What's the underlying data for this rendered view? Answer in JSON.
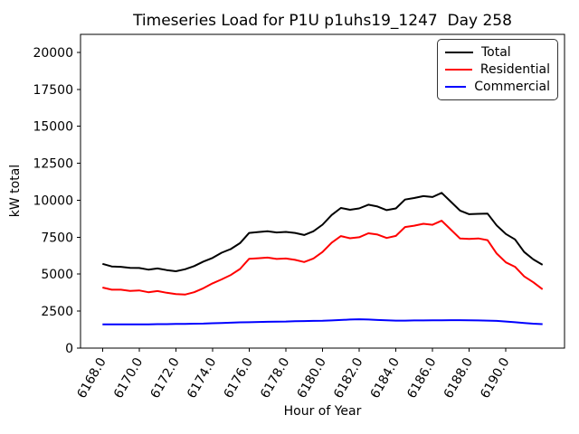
{
  "chart_data": {
    "type": "line",
    "title": "Timeseries Load for P1U p1uhs19_1247  Day 258",
    "xlabel": "Hour of Year",
    "ylabel": "kW total",
    "grid": false,
    "legend_position": "upper right",
    "xlim": [
      6166.8,
      6193.2
    ],
    "ylim": [
      0,
      21222
    ],
    "x_ticks": [
      6168,
      6170,
      6172,
      6174,
      6176,
      6178,
      6180,
      6182,
      6184,
      6186,
      6188,
      6190
    ],
    "x_tick_labels": [
      "6168.0",
      "6170.0",
      "6172.0",
      "6174.0",
      "6176.0",
      "6178.0",
      "6180.0",
      "6182.0",
      "6184.0",
      "6186.0",
      "6188.0",
      "6190.0"
    ],
    "y_ticks": [
      0,
      2500,
      5000,
      7500,
      10000,
      12500,
      15000,
      17500,
      20000
    ],
    "y_tick_labels": [
      "0",
      "2500",
      "5000",
      "7500",
      "10000",
      "12500",
      "15000",
      "17500",
      "20000"
    ],
    "x": [
      6168.0,
      6168.5,
      6169.0,
      6169.5,
      6170.0,
      6170.5,
      6171.0,
      6171.5,
      6172.0,
      6172.5,
      6173.0,
      6173.5,
      6174.0,
      6174.5,
      6175.0,
      6175.5,
      6176.0,
      6176.5,
      6177.0,
      6177.5,
      6178.0,
      6178.5,
      6179.0,
      6179.5,
      6180.0,
      6180.5,
      6181.0,
      6181.5,
      6182.0,
      6182.5,
      6183.0,
      6183.5,
      6184.0,
      6184.5,
      6185.0,
      6185.5,
      6186.0,
      6186.5,
      6187.0,
      6187.5,
      6188.0,
      6188.5,
      6189.0,
      6189.5,
      6190.0,
      6190.5,
      6191.0,
      6191.5,
      6192.0
    ],
    "series": [
      {
        "name": "Total",
        "color": "#000000",
        "values": [
          5700,
          5520,
          5500,
          5430,
          5420,
          5310,
          5390,
          5280,
          5200,
          5330,
          5550,
          5850,
          6100,
          6450,
          6700,
          7100,
          7790,
          7850,
          7900,
          7820,
          7860,
          7790,
          7650,
          7900,
          8350,
          9000,
          9480,
          9360,
          9450,
          9700,
          9580,
          9330,
          9450,
          10050,
          10150,
          10280,
          10220,
          10500,
          9900,
          9300,
          9060,
          9080,
          9100,
          8300,
          7720,
          7350,
          6500,
          6000,
          5630
        ]
      },
      {
        "name": "Residential",
        "color": "#ff0000",
        "values": [
          4100,
          3950,
          3950,
          3870,
          3900,
          3780,
          3860,
          3740,
          3650,
          3620,
          3780,
          4050,
          4380,
          4650,
          4950,
          5350,
          6040,
          6080,
          6120,
          6030,
          6060,
          5970,
          5820,
          6060,
          6500,
          7130,
          7580,
          7430,
          7500,
          7770,
          7680,
          7450,
          7590,
          8190,
          8280,
          8410,
          8340,
          8620,
          8010,
          7410,
          7380,
          7420,
          7300,
          6400,
          5800,
          5500,
          4850,
          4450,
          3980
        ]
      },
      {
        "name": "Commercial",
        "color": "#0000ff",
        "values": [
          1600,
          1600,
          1600,
          1600,
          1610,
          1610,
          1620,
          1620,
          1630,
          1640,
          1650,
          1660,
          1680,
          1700,
          1720,
          1740,
          1750,
          1770,
          1780,
          1790,
          1800,
          1820,
          1830,
          1840,
          1850,
          1870,
          1900,
          1930,
          1950,
          1930,
          1900,
          1880,
          1860,
          1860,
          1870,
          1870,
          1880,
          1880,
          1890,
          1890,
          1880,
          1870,
          1860,
          1840,
          1800,
          1750,
          1700,
          1650,
          1620
        ]
      }
    ]
  }
}
